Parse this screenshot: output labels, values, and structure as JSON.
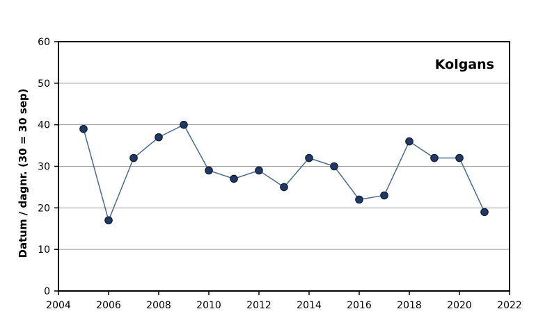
{
  "chart_data": {
    "type": "line",
    "title": "Kolgans",
    "xlabel": "",
    "ylabel": "Datum / dagnr.  (30 = 30 sep)",
    "xlim": [
      2004,
      2022
    ],
    "ylim": [
      0,
      60
    ],
    "x_ticks": [
      2004,
      2006,
      2008,
      2010,
      2012,
      2014,
      2016,
      2018,
      2020,
      2022
    ],
    "y_ticks": [
      0,
      10,
      20,
      30,
      40,
      50,
      60
    ],
    "grid": "horizontal",
    "title_position": "top-right",
    "series": [
      {
        "x": [
          2005,
          2006,
          2007,
          2008,
          2009,
          2010,
          2011,
          2012,
          2013,
          2014,
          2015,
          2016,
          2017,
          2018,
          2019,
          2020,
          2021
        ],
        "values": [
          39,
          17,
          32,
          37,
          40,
          29,
          27,
          29,
          25,
          32,
          30,
          22,
          23,
          36,
          32,
          32,
          19
        ]
      }
    ],
    "colors": {
      "line": "#4a6a94",
      "marker_fill": "#1f3864",
      "marker_stroke": "#0d1a33",
      "grid": "#9a9a9a",
      "frame": "#000000"
    }
  }
}
